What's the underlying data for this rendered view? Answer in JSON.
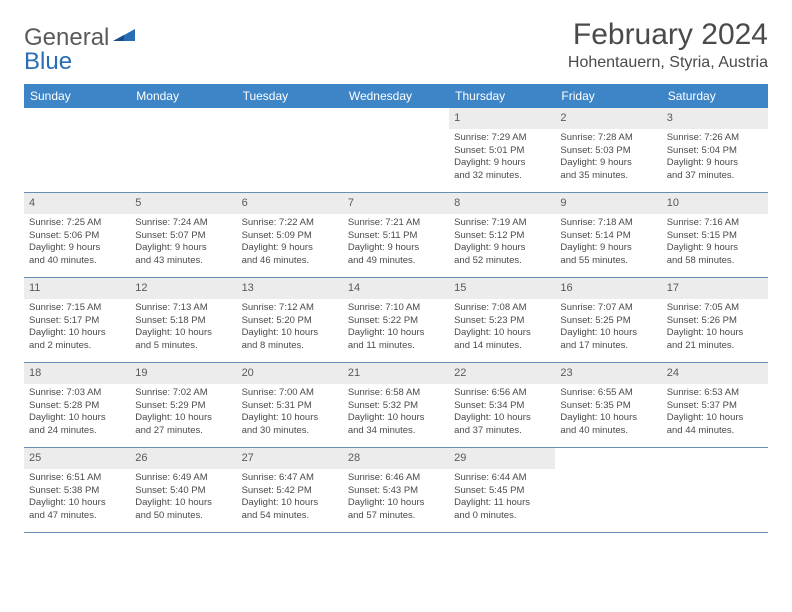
{
  "brand": {
    "part1": "General",
    "part2": "Blue"
  },
  "title": "February 2024",
  "location": "Hohentauern, Styria, Austria",
  "colors": {
    "header_bg": "#3d85c6",
    "header_text": "#ffffff",
    "daynum_bg": "#ececec",
    "row_divider": "#6a8db8",
    "text": "#4a4a4a",
    "brand_gray": "#5a5a5a",
    "brand_blue": "#2a6db5",
    "background": "#ffffff"
  },
  "layout": {
    "cell_font_size_pt": 9.5,
    "header_font_size_pt": 12,
    "title_font_size_pt": 30,
    "location_font_size_pt": 16
  },
  "calendar": {
    "type": "table",
    "day_labels": [
      "Sunday",
      "Monday",
      "Tuesday",
      "Wednesday",
      "Thursday",
      "Friday",
      "Saturday"
    ],
    "weeks": [
      [
        null,
        null,
        null,
        null,
        {
          "n": "1",
          "sunrise": "7:29 AM",
          "sunset": "5:01 PM",
          "day_h": "9",
          "day_m": "32"
        },
        {
          "n": "2",
          "sunrise": "7:28 AM",
          "sunset": "5:03 PM",
          "day_h": "9",
          "day_m": "35"
        },
        {
          "n": "3",
          "sunrise": "7:26 AM",
          "sunset": "5:04 PM",
          "day_h": "9",
          "day_m": "37"
        }
      ],
      [
        {
          "n": "4",
          "sunrise": "7:25 AM",
          "sunset": "5:06 PM",
          "day_h": "9",
          "day_m": "40"
        },
        {
          "n": "5",
          "sunrise": "7:24 AM",
          "sunset": "5:07 PM",
          "day_h": "9",
          "day_m": "43"
        },
        {
          "n": "6",
          "sunrise": "7:22 AM",
          "sunset": "5:09 PM",
          "day_h": "9",
          "day_m": "46"
        },
        {
          "n": "7",
          "sunrise": "7:21 AM",
          "sunset": "5:11 PM",
          "day_h": "9",
          "day_m": "49"
        },
        {
          "n": "8",
          "sunrise": "7:19 AM",
          "sunset": "5:12 PM",
          "day_h": "9",
          "day_m": "52"
        },
        {
          "n": "9",
          "sunrise": "7:18 AM",
          "sunset": "5:14 PM",
          "day_h": "9",
          "day_m": "55"
        },
        {
          "n": "10",
          "sunrise": "7:16 AM",
          "sunset": "5:15 PM",
          "day_h": "9",
          "day_m": "58"
        }
      ],
      [
        {
          "n": "11",
          "sunrise": "7:15 AM",
          "sunset": "5:17 PM",
          "day_h": "10",
          "day_m": "2"
        },
        {
          "n": "12",
          "sunrise": "7:13 AM",
          "sunset": "5:18 PM",
          "day_h": "10",
          "day_m": "5"
        },
        {
          "n": "13",
          "sunrise": "7:12 AM",
          "sunset": "5:20 PM",
          "day_h": "10",
          "day_m": "8"
        },
        {
          "n": "14",
          "sunrise": "7:10 AM",
          "sunset": "5:22 PM",
          "day_h": "10",
          "day_m": "11"
        },
        {
          "n": "15",
          "sunrise": "7:08 AM",
          "sunset": "5:23 PM",
          "day_h": "10",
          "day_m": "14"
        },
        {
          "n": "16",
          "sunrise": "7:07 AM",
          "sunset": "5:25 PM",
          "day_h": "10",
          "day_m": "17"
        },
        {
          "n": "17",
          "sunrise": "7:05 AM",
          "sunset": "5:26 PM",
          "day_h": "10",
          "day_m": "21"
        }
      ],
      [
        {
          "n": "18",
          "sunrise": "7:03 AM",
          "sunset": "5:28 PM",
          "day_h": "10",
          "day_m": "24"
        },
        {
          "n": "19",
          "sunrise": "7:02 AM",
          "sunset": "5:29 PM",
          "day_h": "10",
          "day_m": "27"
        },
        {
          "n": "20",
          "sunrise": "7:00 AM",
          "sunset": "5:31 PM",
          "day_h": "10",
          "day_m": "30"
        },
        {
          "n": "21",
          "sunrise": "6:58 AM",
          "sunset": "5:32 PM",
          "day_h": "10",
          "day_m": "34"
        },
        {
          "n": "22",
          "sunrise": "6:56 AM",
          "sunset": "5:34 PM",
          "day_h": "10",
          "day_m": "37"
        },
        {
          "n": "23",
          "sunrise": "6:55 AM",
          "sunset": "5:35 PM",
          "day_h": "10",
          "day_m": "40"
        },
        {
          "n": "24",
          "sunrise": "6:53 AM",
          "sunset": "5:37 PM",
          "day_h": "10",
          "day_m": "44"
        }
      ],
      [
        {
          "n": "25",
          "sunrise": "6:51 AM",
          "sunset": "5:38 PM",
          "day_h": "10",
          "day_m": "47"
        },
        {
          "n": "26",
          "sunrise": "6:49 AM",
          "sunset": "5:40 PM",
          "day_h": "10",
          "day_m": "50"
        },
        {
          "n": "27",
          "sunrise": "6:47 AM",
          "sunset": "5:42 PM",
          "day_h": "10",
          "day_m": "54"
        },
        {
          "n": "28",
          "sunrise": "6:46 AM",
          "sunset": "5:43 PM",
          "day_h": "10",
          "day_m": "57"
        },
        {
          "n": "29",
          "sunrise": "6:44 AM",
          "sunset": "5:45 PM",
          "day_h": "11",
          "day_m": "0"
        },
        null,
        null
      ]
    ]
  }
}
